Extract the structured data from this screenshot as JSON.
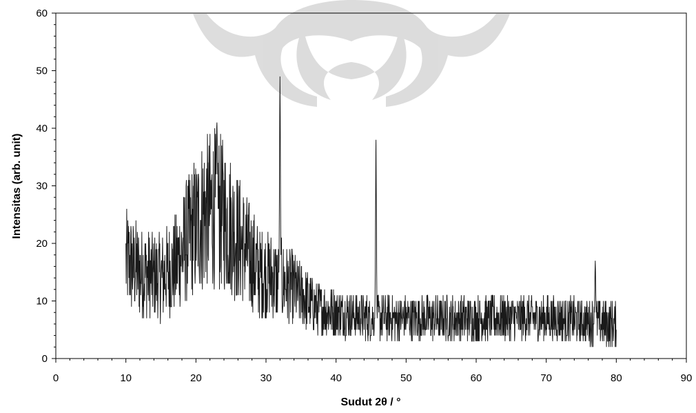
{
  "chart_data": {
    "type": "line",
    "title": "",
    "xlabel": "Sudut 2θ / °",
    "ylabel": "Intensitas (arb. unit)",
    "xlim": [
      0,
      90
    ],
    "ylim": [
      0,
      60
    ],
    "x_ticks": [
      0,
      10,
      20,
      30,
      40,
      50,
      60,
      70,
      80,
      90
    ],
    "y_ticks": [
      0,
      10,
      20,
      30,
      40,
      50,
      60
    ],
    "x_range_measured": [
      10,
      80
    ],
    "grid": false,
    "legend": "none",
    "line_color": "#1a1a1a",
    "baseline_profile": [
      {
        "x": 10,
        "y": 17
      },
      {
        "x": 12,
        "y": 15
      },
      {
        "x": 15,
        "y": 14
      },
      {
        "x": 17,
        "y": 16
      },
      {
        "x": 19,
        "y": 21
      },
      {
        "x": 21,
        "y": 25
      },
      {
        "x": 23,
        "y": 26
      },
      {
        "x": 25,
        "y": 23
      },
      {
        "x": 27,
        "y": 19
      },
      {
        "x": 29,
        "y": 15
      },
      {
        "x": 31,
        "y": 14
      },
      {
        "x": 33,
        "y": 13
      },
      {
        "x": 35,
        "y": 11
      },
      {
        "x": 37,
        "y": 9
      },
      {
        "x": 40,
        "y": 8
      },
      {
        "x": 45,
        "y": 7
      },
      {
        "x": 50,
        "y": 7
      },
      {
        "x": 60,
        "y": 7
      },
      {
        "x": 70,
        "y": 7
      },
      {
        "x": 80,
        "y": 6
      }
    ],
    "peaks": [
      {
        "x": 23.0,
        "y": 41
      },
      {
        "x": 32.0,
        "y": 49
      },
      {
        "x": 45.7,
        "y": 38
      },
      {
        "x": 77.0,
        "y": 17
      }
    ]
  }
}
